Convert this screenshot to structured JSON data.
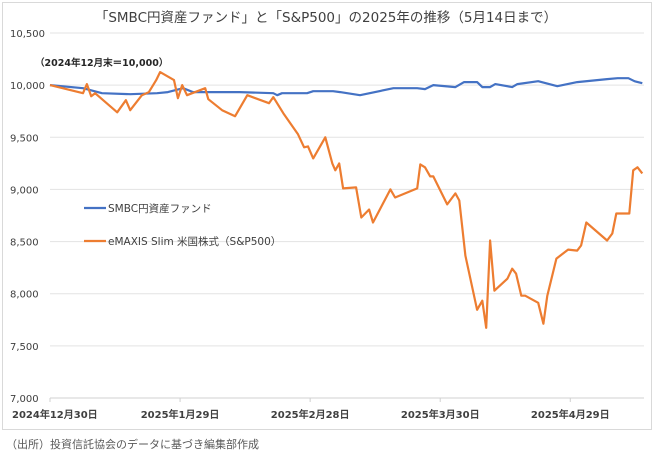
{
  "chart_data": {
    "type": "line",
    "title": "「SMBC円資産ファンド」と「S&P500」の2025年の推移（5月14日まで）",
    "annotation": "（2024年12月末＝10,000）",
    "xlabel": "",
    "ylabel": "",
    "x_unit": "days since 2024-12-30",
    "xlim": [
      0,
      137
    ],
    "ylim": [
      7000,
      10500
    ],
    "y_ticks": [
      7000,
      7500,
      8000,
      8500,
      9000,
      9500,
      10000,
      10500
    ],
    "y_tick_labels": [
      "7,000",
      "7,500",
      "8,000",
      "8,500",
      "9,000",
      "9,500",
      "10,000",
      "10,500"
    ],
    "x_ticks": [
      0,
      30,
      60,
      90,
      120
    ],
    "x_tick_labels": [
      "2024年12月30日",
      "2025年1月29日",
      "2025年2月28日",
      "2025年3月30日",
      "2025年4月29日"
    ],
    "grid": true,
    "legend_position": "center-left",
    "series": [
      {
        "name": "SMBC円資産ファンド",
        "color": "#4472c4",
        "points": [
          [
            0,
            10000
          ],
          [
            7.6,
            9971
          ],
          [
            12,
            9923
          ],
          [
            18.5,
            9913
          ],
          [
            24.7,
            9923
          ],
          [
            27.2,
            9933
          ],
          [
            30.7,
            9971
          ],
          [
            33,
            9933
          ],
          [
            36.2,
            9933
          ],
          [
            43.8,
            9933
          ],
          [
            51.5,
            9923
          ],
          [
            52.4,
            9904
          ],
          [
            53.5,
            9923
          ],
          [
            59.3,
            9923
          ],
          [
            60.7,
            9942
          ],
          [
            65.3,
            9942
          ],
          [
            66.9,
            9933
          ],
          [
            71.5,
            9904
          ],
          [
            79.2,
            9971
          ],
          [
            84.7,
            9971
          ],
          [
            86.5,
            9962
          ],
          [
            88.4,
            10000
          ],
          [
            93.5,
            9981
          ],
          [
            95.5,
            10029
          ],
          [
            98.5,
            10029
          ],
          [
            99.7,
            9981
          ],
          [
            101.5,
            9981
          ],
          [
            102.7,
            10010
          ],
          [
            106.6,
            9981
          ],
          [
            107.8,
            10010
          ],
          [
            112.6,
            10038
          ],
          [
            117,
            9990
          ],
          [
            121.6,
            10029
          ],
          [
            128.5,
            10058
          ],
          [
            130.9,
            10067
          ],
          [
            133.4,
            10067
          ],
          [
            134.8,
            10038
          ],
          [
            136.6,
            10019
          ]
        ]
      },
      {
        "name": "eMAXIS Slim 米国株式（S&P500）",
        "color": "#ed7d31",
        "points": [
          [
            0,
            10000
          ],
          [
            7.6,
            9923
          ],
          [
            8.5,
            10010
          ],
          [
            9.5,
            9894
          ],
          [
            10.4,
            9923
          ],
          [
            15.5,
            9740
          ],
          [
            17.5,
            9856
          ],
          [
            18.5,
            9760
          ],
          [
            21.2,
            9904
          ],
          [
            22.8,
            9933
          ],
          [
            24.5,
            10048
          ],
          [
            25.4,
            10125
          ],
          [
            28.6,
            10048
          ],
          [
            29.5,
            9875
          ],
          [
            30.5,
            10000
          ],
          [
            31.6,
            9904
          ],
          [
            35.8,
            9971
          ],
          [
            36.5,
            9865
          ],
          [
            39.7,
            9760
          ],
          [
            42.7,
            9702
          ],
          [
            45.5,
            9904
          ],
          [
            50.5,
            9827
          ],
          [
            51.5,
            9885
          ],
          [
            53.8,
            9731
          ],
          [
            57.2,
            9529
          ],
          [
            58.6,
            9404
          ],
          [
            59.5,
            9413
          ],
          [
            60.7,
            9298
          ],
          [
            63.5,
            9500
          ],
          [
            65.1,
            9250
          ],
          [
            65.8,
            9183
          ],
          [
            66.7,
            9250
          ],
          [
            67.6,
            9010
          ],
          [
            70.6,
            9019
          ],
          [
            71.8,
            8731
          ],
          [
            73.6,
            8808
          ],
          [
            74.5,
            8683
          ],
          [
            78.5,
            9000
          ],
          [
            79.6,
            8923
          ],
          [
            84.7,
            9010
          ],
          [
            85.4,
            9240
          ],
          [
            86.5,
            9212
          ],
          [
            87.7,
            9125
          ],
          [
            88.4,
            9125
          ],
          [
            91.6,
            8856
          ],
          [
            93.5,
            8962
          ],
          [
            94.4,
            8894
          ],
          [
            95.8,
            8365
          ],
          [
            98.5,
            7846
          ],
          [
            99.7,
            7933
          ],
          [
            100.6,
            7673
          ],
          [
            101.5,
            8510
          ],
          [
            102.5,
            8029
          ],
          [
            105.5,
            8144
          ],
          [
            106.6,
            8240
          ],
          [
            107.5,
            8192
          ],
          [
            108.7,
            7981
          ],
          [
            109.6,
            7981
          ],
          [
            112.6,
            7913
          ],
          [
            113.8,
            7712
          ],
          [
            114.7,
            7981
          ],
          [
            116.8,
            8337
          ],
          [
            119.5,
            8423
          ],
          [
            121.6,
            8413
          ],
          [
            122.5,
            8462
          ],
          [
            123.7,
            8683
          ],
          [
            128.5,
            8510
          ],
          [
            129.7,
            8577
          ],
          [
            130.6,
            8769
          ],
          [
            133.6,
            8769
          ],
          [
            134.5,
            9183
          ],
          [
            135.5,
            9212
          ],
          [
            136.6,
            9154
          ]
        ]
      }
    ]
  },
  "source": "（出所）投資信託協会のデータに基づき編集部作成"
}
